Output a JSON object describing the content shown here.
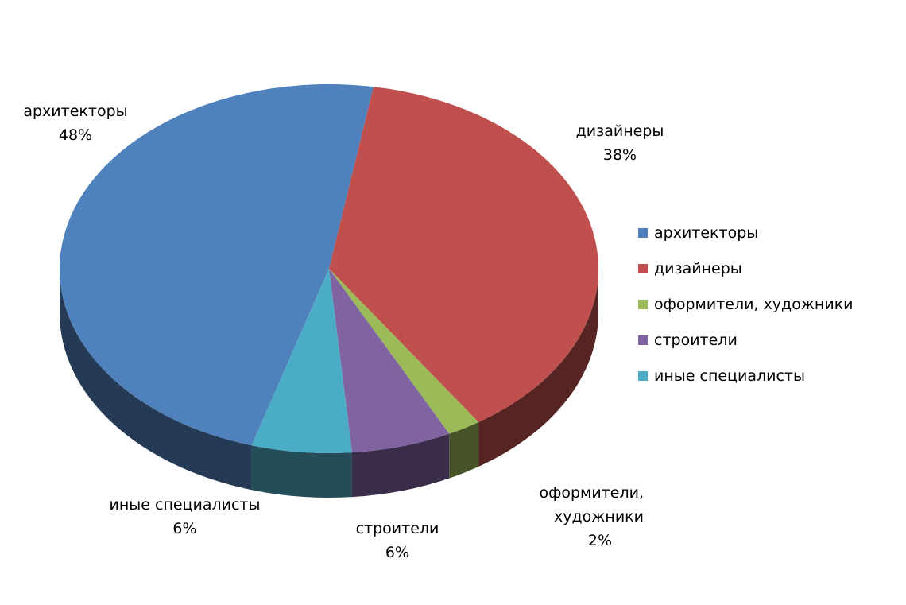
{
  "chart_data": {
    "type": "pie",
    "categories": [
      "архитекторы",
      "дизайнеры",
      "оформители, художники",
      "строители",
      "иные специалисты"
    ],
    "values": [
      48,
      38,
      2,
      6,
      6
    ],
    "value_labels": [
      "48%",
      "38%",
      "2%",
      "6%",
      "6%"
    ],
    "colors": [
      "#4f81bd",
      "#c0504d",
      "#9bbb59",
      "#8064a2",
      "#4bacc6"
    ],
    "legend": "right"
  }
}
